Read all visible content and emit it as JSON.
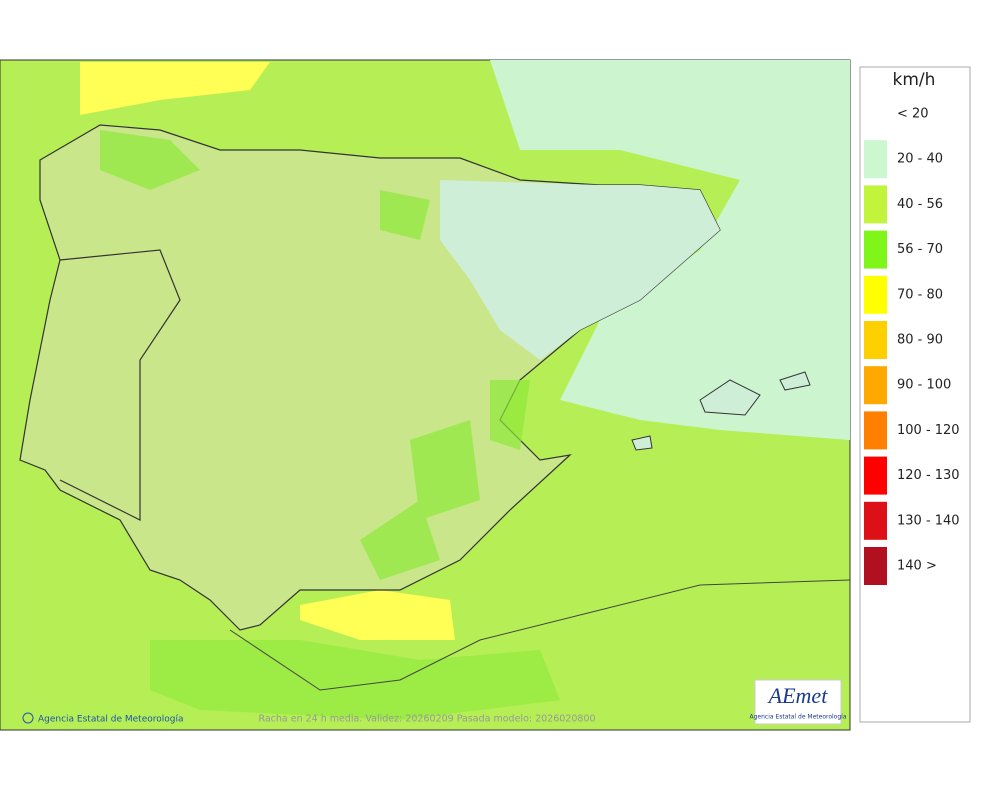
{
  "legend": {
    "unit": "km/h",
    "items": [
      {
        "label": "< 20"
      },
      {
        "label": "20 - 40",
        "color": "#ccf7cf"
      },
      {
        "label": "40 - 56",
        "color": "#c3f43c"
      },
      {
        "label": "56 - 70",
        "color": "#7ff51a"
      },
      {
        "label": "70 - 80",
        "color": "#ffff00"
      },
      {
        "label": "80 - 90",
        "color": "#ffd000"
      },
      {
        "label": "90 - 100",
        "color": "#ffa800"
      },
      {
        "label": "100 - 120",
        "color": "#ff8000"
      },
      {
        "label": "120 - 130",
        "color": "#ff0000"
      },
      {
        "label": "130 - 140",
        "color": "#dd1018"
      },
      {
        "label": "140 >",
        "color": "#b01020"
      }
    ]
  },
  "footer": {
    "credit": "Agencia Estatal de Meteorología",
    "caption": "Racha en 24 h media. Validez: 20260209 Pasada modelo: 2026020800"
  },
  "logo": {
    "name": "AEmet",
    "subtitle": "Agencia Estatal de Meteorología"
  }
}
